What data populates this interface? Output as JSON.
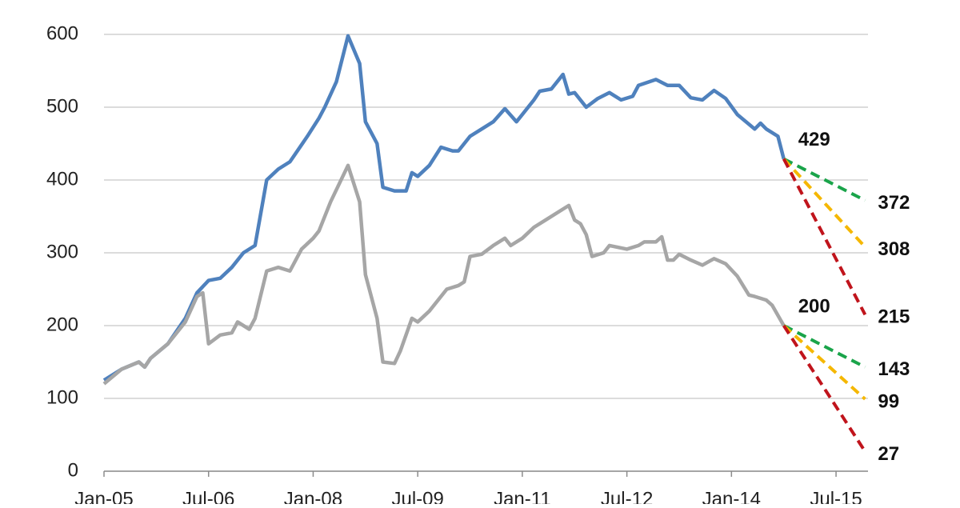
{
  "chart_data": {
    "type": "line",
    "xlim": [
      0,
      131.5
    ],
    "ylim": [
      0,
      600
    ],
    "yticks": [
      0,
      100,
      200,
      300,
      400,
      500,
      600
    ],
    "xticks": [
      {
        "value": 0,
        "label": "Jan-05"
      },
      {
        "value": 18,
        "label": "Jul-06"
      },
      {
        "value": 36,
        "label": "Jan-08"
      },
      {
        "value": 54,
        "label": "Jul-09"
      },
      {
        "value": 72,
        "label": "Jan-11"
      },
      {
        "value": 90,
        "label": "Jul-12"
      },
      {
        "value": 108,
        "label": "Jan-14"
      },
      {
        "value": 126,
        "label": "Jul-15"
      }
    ],
    "grid": true,
    "series": [
      {
        "color": "#4f81bd",
        "dashed": false,
        "label_last": true,
        "x": [
          0,
          3,
          6,
          7,
          8,
          11,
          14,
          16,
          18,
          20,
          22,
          24,
          26,
          28,
          30,
          32,
          35,
          37,
          38,
          40,
          42,
          44,
          45,
          47,
          48,
          50,
          52,
          53,
          54,
          56,
          58,
          60,
          61,
          63,
          65,
          67,
          69,
          71,
          72,
          74,
          75,
          77,
          79,
          80,
          81,
          83,
          85,
          87,
          89,
          91,
          92,
          95,
          97,
          99,
          101,
          103,
          105,
          107,
          109,
          112,
          113,
          114,
          116,
          117
        ],
        "values": [
          125,
          140,
          150,
          143,
          155,
          175,
          210,
          245,
          262,
          265,
          280,
          300,
          310,
          400,
          415,
          425,
          460,
          485,
          500,
          535,
          598,
          560,
          480,
          450,
          390,
          385,
          385,
          410,
          405,
          420,
          445,
          440,
          440,
          460,
          470,
          480,
          498,
          480,
          490,
          510,
          522,
          525,
          545,
          518,
          520,
          500,
          512,
          520,
          510,
          515,
          530,
          538,
          530,
          530,
          513,
          510,
          523,
          512,
          490,
          470,
          478,
          470,
          460,
          429
        ]
      },
      {
        "color": "#a6a6a6",
        "dashed": false,
        "label_last": true,
        "x": [
          0,
          3,
          6,
          7,
          8,
          11,
          14,
          16,
          17,
          18,
          20,
          22,
          23,
          25,
          26,
          28,
          30,
          32,
          34,
          36,
          37,
          39,
          42,
          44,
          45,
          47,
          48,
          50,
          51,
          53,
          54,
          56,
          59,
          61,
          62,
          63,
          65,
          67,
          69,
          70,
          72,
          74,
          76,
          79,
          80,
          81,
          82,
          83,
          84,
          86,
          87,
          90,
          92,
          93,
          95,
          96,
          97,
          98,
          99,
          101,
          103,
          105,
          107,
          109,
          111,
          112,
          114,
          115,
          117
        ],
        "values": [
          120,
          140,
          150,
          143,
          155,
          175,
          205,
          240,
          245,
          175,
          187,
          190,
          205,
          195,
          210,
          275,
          280,
          275,
          305,
          320,
          330,
          370,
          420,
          370,
          270,
          210,
          150,
          148,
          165,
          210,
          205,
          220,
          250,
          255,
          260,
          295,
          298,
          310,
          320,
          310,
          320,
          335,
          345,
          360,
          365,
          345,
          340,
          325,
          295,
          300,
          310,
          305,
          310,
          315,
          315,
          322,
          290,
          290,
          298,
          290,
          283,
          292,
          285,
          268,
          242,
          240,
          235,
          228,
          200
        ]
      },
      {
        "color": "#1aa44a",
        "dashed": true,
        "label_last": true,
        "x": [
          117,
          131
        ],
        "values": [
          429,
          372
        ]
      },
      {
        "color": "#f5b700",
        "dashed": true,
        "label_last": true,
        "x": [
          117,
          131
        ],
        "values": [
          429,
          308
        ]
      },
      {
        "color": "#c0141c",
        "dashed": true,
        "label_last": true,
        "x": [
          117,
          131
        ],
        "values": [
          429,
          215
        ]
      },
      {
        "color": "#1aa44a",
        "dashed": true,
        "label_last": true,
        "x": [
          117,
          131
        ],
        "values": [
          200,
          143
        ]
      },
      {
        "color": "#f5b700",
        "dashed": true,
        "label_last": true,
        "x": [
          117,
          131
        ],
        "values": [
          200,
          99
        ]
      },
      {
        "color": "#c0141c",
        "dashed": true,
        "label_last": true,
        "x": [
          117,
          131
        ],
        "values": [
          200,
          27
        ]
      }
    ]
  }
}
